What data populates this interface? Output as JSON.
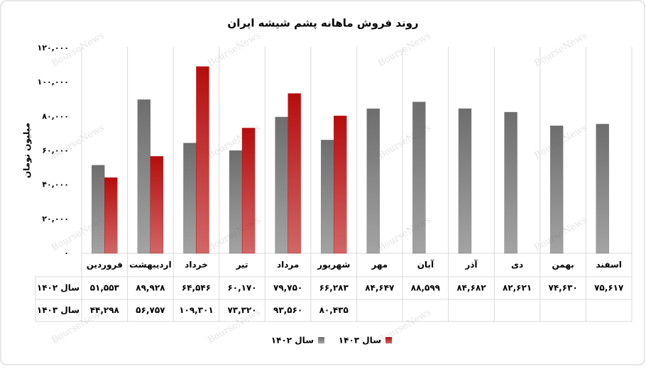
{
  "chart_data": {
    "type": "bar",
    "title": "روند فروش ماهانه پشم شیشه ایران",
    "y_label": "میلیون تومان",
    "watermark": "BourseNews",
    "categories": [
      "فروردین",
      "اردیبهشت",
      "خرداد",
      "تیر",
      "مرداد",
      "شهریور",
      "مهر",
      "آبان",
      "آذر",
      "دی",
      "بهمن",
      "اسفند"
    ],
    "series": [
      {
        "name": "سال ۱۴۰۲",
        "color": "#666666",
        "values": [
          51553,
          89928,
          64546,
          60170,
          79750,
          66283,
          84647,
          88599,
          84682,
          82621,
          74630,
          75617
        ],
        "value_labels": [
          "۵۱,۵۵۳",
          "۸۹,۹۲۸",
          "۶۴,۵۴۶",
          "۶۰,۱۷۰",
          "۷۹,۷۵۰",
          "۶۶,۲۸۳",
          "۸۴,۶۴۷",
          "۸۸,۵۹۹",
          "۸۴,۶۸۲",
          "۸۲,۶۲۱",
          "۷۴,۶۳۰",
          "۷۵,۶۱۷"
        ]
      },
      {
        "name": "سال ۱۴۰۳",
        "color": "#b30000",
        "values": [
          44298,
          56757,
          109301,
          73320,
          93560,
          80435,
          null,
          null,
          null,
          null,
          null,
          null
        ],
        "value_labels": [
          "۴۴,۲۹۸",
          "۵۶,۷۵۷",
          "۱۰۹,۳۰۱",
          "۷۳,۳۲۰",
          "۹۳,۵۶۰",
          "۸۰,۴۳۵",
          null,
          null,
          null,
          null,
          null,
          null
        ]
      }
    ],
    "ylim": [
      0,
      120000
    ],
    "yticks": [
      {
        "value": 0,
        "label": "۰"
      },
      {
        "value": 20000,
        "label": "۲۰,۰۰۰"
      },
      {
        "value": 40000,
        "label": "۴۰,۰۰۰"
      },
      {
        "value": 60000,
        "label": "۶۰,۰۰۰"
      },
      {
        "value": 80000,
        "label": "۸۰,۰۰۰"
      },
      {
        "value": 100000,
        "label": "۱۰۰,۰۰۰"
      },
      {
        "value": 120000,
        "label": "۱۲۰,۰۰۰"
      }
    ],
    "grid": false,
    "legend": "bottom"
  }
}
